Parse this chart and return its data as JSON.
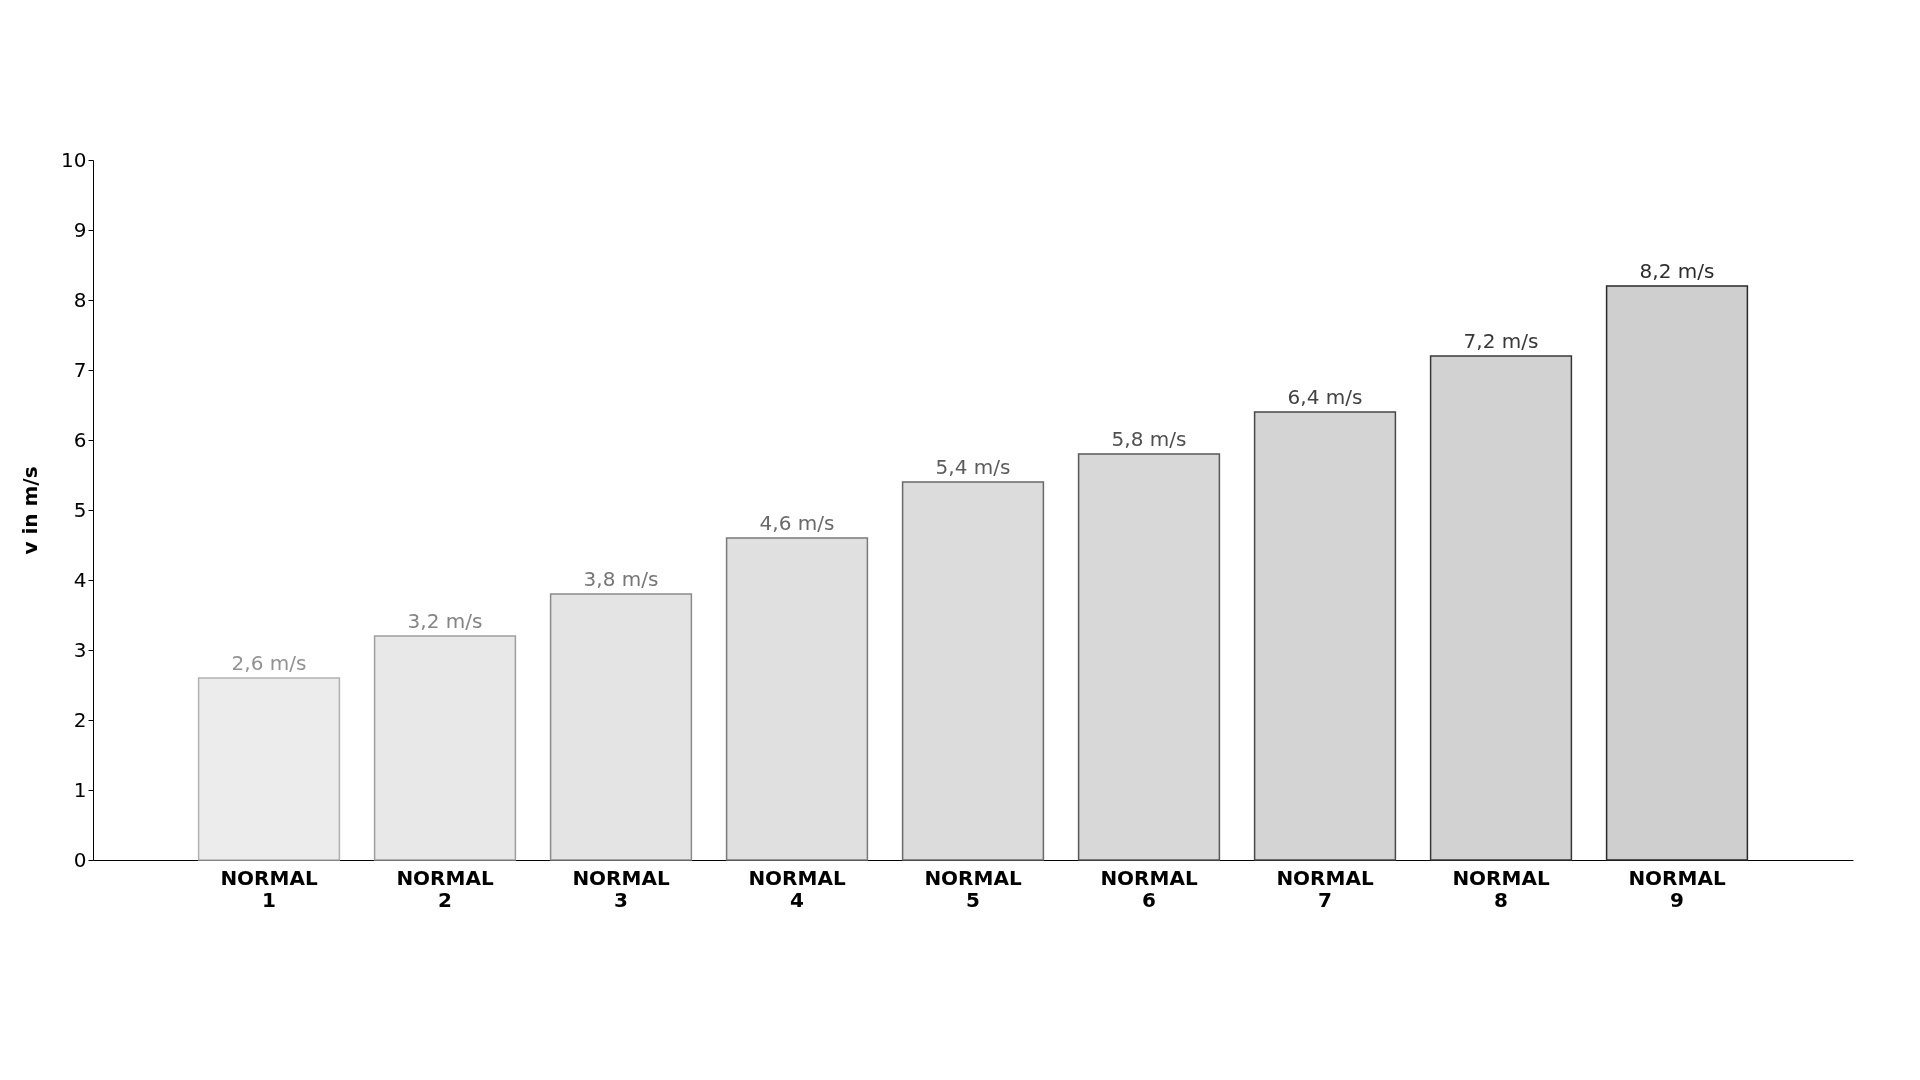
{
  "chart_data": {
    "type": "bar",
    "ylabel": "v in m/s",
    "categories": [
      "NORMAL\n1",
      "NORMAL\n2",
      "NORMAL\n3",
      "NORMAL\n4",
      "NORMAL\n5",
      "NORMAL\n6",
      "NORMAL\n7",
      "NORMAL\n8",
      "NORMAL\n9"
    ],
    "values": [
      2.6,
      3.2,
      3.8,
      4.6,
      5.4,
      5.8,
      6.4,
      7.2,
      8.2
    ],
    "value_labels": [
      "2,6 m/s",
      "3,2 m/s",
      "3,8 m/s",
      "4,6 m/s",
      "5,4 m/s",
      "5,8 m/s",
      "6,4 m/s",
      "7,2 m/s",
      "8,2 m/s"
    ],
    "colors": [
      "#ececec",
      "#e8e8e8",
      "#e4e4e4",
      "#e0e0e0",
      "#dcdcdc",
      "#d8d8d8",
      "#d4d4d4",
      "#d2d2d2",
      "#cfcfcf"
    ],
    "ylim": [
      0,
      10
    ],
    "yticks": [
      0,
      1,
      2,
      3,
      4,
      5,
      6,
      7,
      8,
      9,
      10
    ],
    "grid": false,
    "legend": false
  }
}
